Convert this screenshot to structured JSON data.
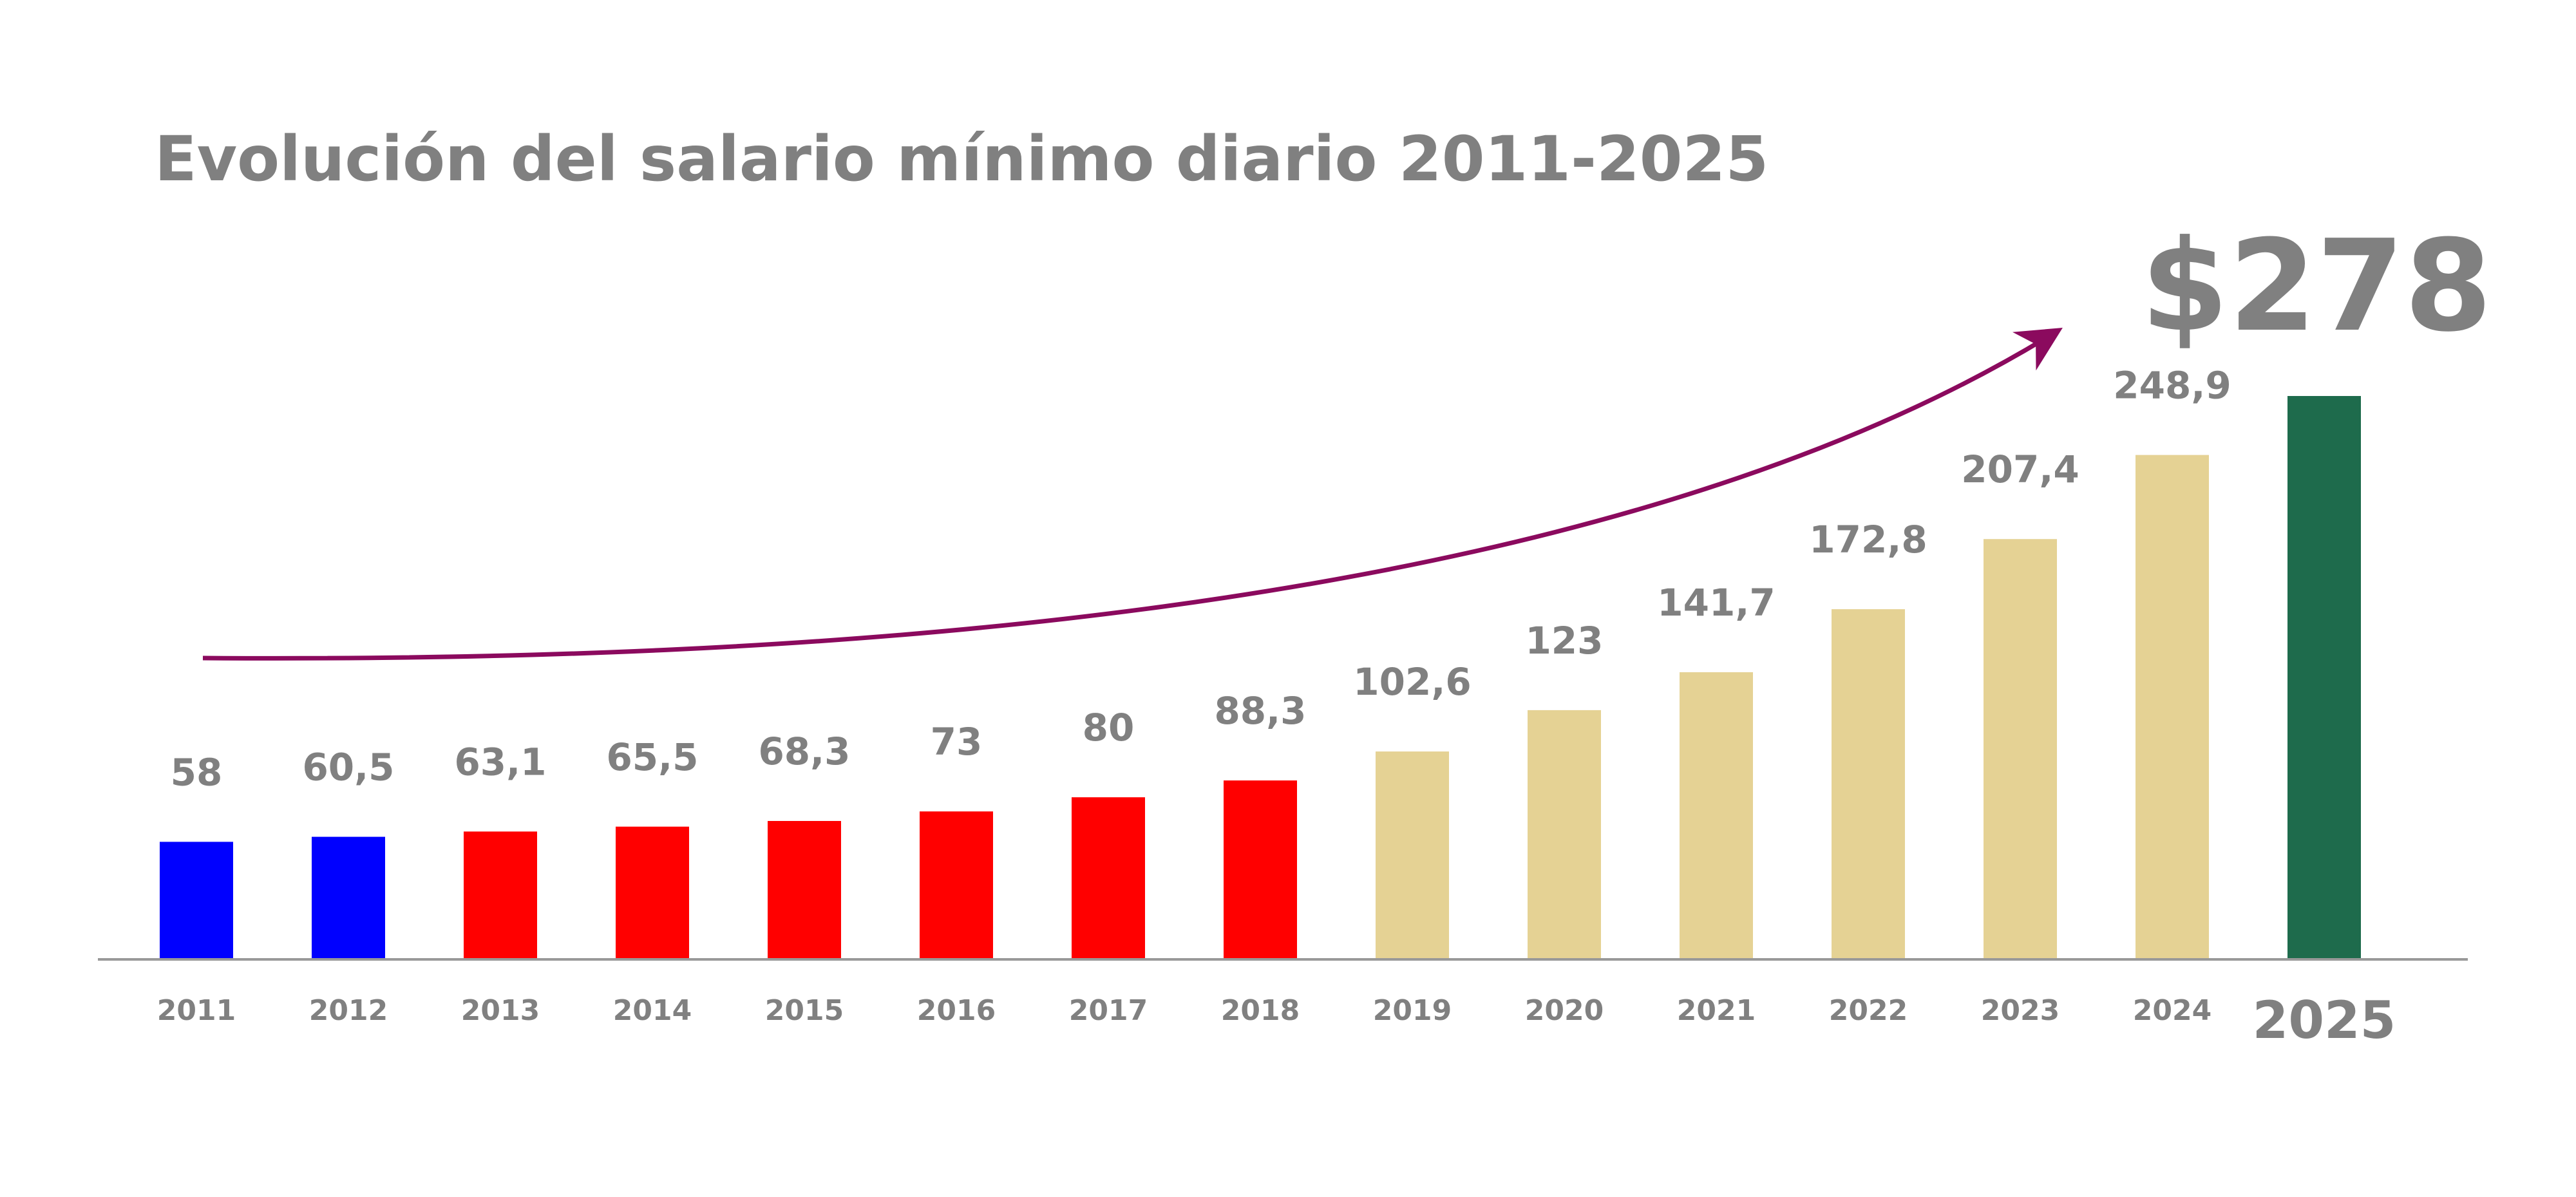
{
  "chart_data": {
    "type": "bar",
    "title": "Evolución del salario mínimo diario 2011-2025",
    "xlabel": "",
    "ylabel": "",
    "ylim": [
      0,
      278
    ],
    "grid": false,
    "legend": "none",
    "categories": [
      "2011",
      "2012",
      "2013",
      "2014",
      "2015",
      "2016",
      "2017",
      "2018",
      "2019",
      "2020",
      "2021",
      "2022",
      "2023",
      "2024",
      "2025"
    ],
    "values": [
      58,
      60.5,
      63.1,
      65.5,
      68.3,
      73,
      80,
      88.3,
      102.6,
      123,
      141.7,
      172.8,
      207.4,
      248.9,
      278
    ],
    "value_labels": [
      "58",
      "60,5",
      "63,1",
      "65,5",
      "68,3",
      "73",
      "80",
      "88,3",
      "102,6",
      "123",
      "141,7",
      "172,8",
      "207,4",
      "248,9",
      "$278"
    ],
    "bar_colors": [
      "#0000ff",
      "#0000ff",
      "#ff0000",
      "#ff0000",
      "#ff0000",
      "#ff0000",
      "#ff0000",
      "#ff0000",
      "#e5d294",
      "#e5d294",
      "#e5d294",
      "#e5d294",
      "#e5d294",
      "#e5d294",
      "#1e6b4c"
    ],
    "highlight_index": 14,
    "annotations": [
      {
        "type": "trend-arrow",
        "color": "#8b0a5e"
      }
    ]
  },
  "colors": {
    "text": "#808080",
    "axis": "#999999",
    "arrow": "#8b0a5e"
  }
}
